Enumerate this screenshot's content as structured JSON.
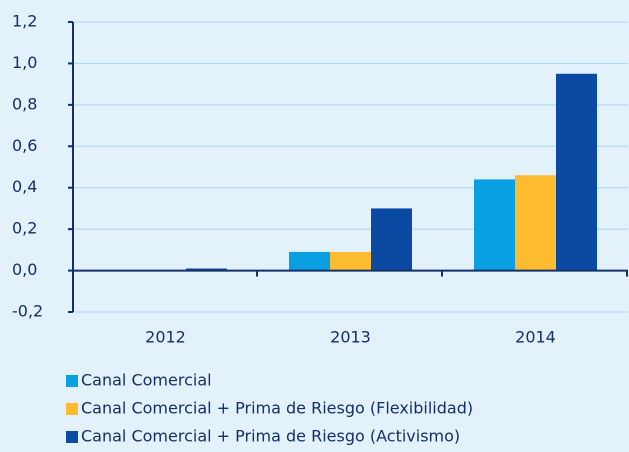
{
  "chart_data": {
    "type": "bar",
    "categories": [
      "2012",
      "2013",
      "2014"
    ],
    "series": [
      {
        "name": "Canal Comercial",
        "color": "#0a9fe0",
        "values": [
          0,
          0.09,
          0.44
        ]
      },
      {
        "name": "Canal Comercial + Prima de Riesgo (Flexibilidad)",
        "color": "#fdbb2f",
        "values": [
          0,
          0.09,
          0.46
        ]
      },
      {
        "name": "Canal Comercial + Prima de Riesgo (Activismo)",
        "color": "#0b4aa2",
        "values": [
          0.01,
          0.3,
          0.95
        ]
      }
    ],
    "ylim": [
      -0.2,
      1.2
    ],
    "yticks": [
      {
        "value": -0.2,
        "label": "-0,2"
      },
      {
        "value": 0,
        "label": "0,0"
      },
      {
        "value": 0.2,
        "label": "0,2"
      },
      {
        "value": 0.4,
        "label": "0,4"
      },
      {
        "value": 0.6,
        "label": "0,6"
      },
      {
        "value": 0.8,
        "label": "0,8"
      },
      {
        "value": 1.0,
        "label": "1,0"
      },
      {
        "value": 1.2,
        "label": "1,2"
      }
    ],
    "grid": true
  }
}
